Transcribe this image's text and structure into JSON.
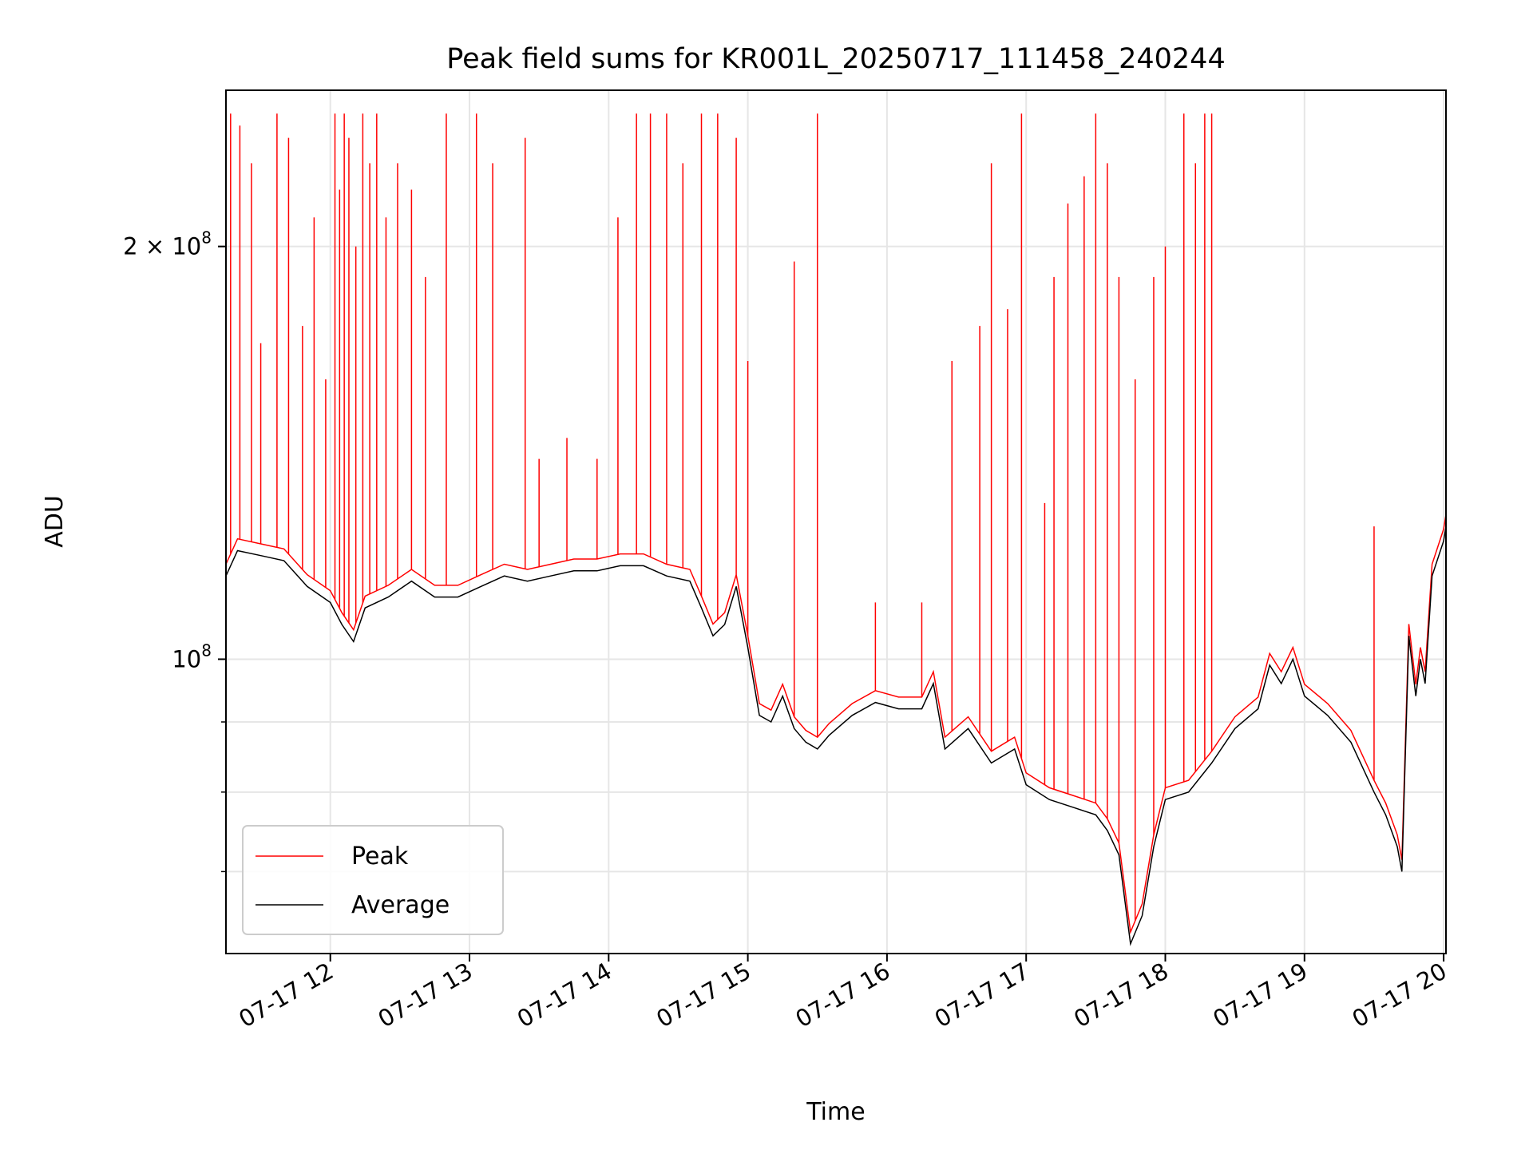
{
  "chart_data": {
    "type": "line",
    "title": "Peak field sums for KR001L_20250717_111458_240244",
    "xlabel": "Time",
    "ylabel": "ADU",
    "x_range": [
      "2025-07-17 11:15",
      "2025-07-17 20:01"
    ],
    "y_scale": "log",
    "ylim": [
      61000000,
      260000000
    ],
    "grid": true,
    "legend_position": "lower-left",
    "x_ticks": [
      {
        "value": "2025-07-17 12:00",
        "label": "07-17 12"
      },
      {
        "value": "2025-07-17 13:00",
        "label": "07-17 13"
      },
      {
        "value": "2025-07-17 14:00",
        "label": "07-17 14"
      },
      {
        "value": "2025-07-17 15:00",
        "label": "07-17 15"
      },
      {
        "value": "2025-07-17 16:00",
        "label": "07-17 16"
      },
      {
        "value": "2025-07-17 17:00",
        "label": "07-17 17"
      },
      {
        "value": "2025-07-17 18:00",
        "label": "07-17 18"
      },
      {
        "value": "2025-07-17 19:00",
        "label": "07-17 19"
      },
      {
        "value": "2025-07-17 20:00",
        "label": "07-17 20"
      }
    ],
    "y_ticks": [
      {
        "value": 100000000,
        "label_base": "10",
        "label_exp": "8",
        "label_coef": ""
      },
      {
        "value": 200000000,
        "label_base": "10",
        "label_exp": "8",
        "label_coef": "2 × "
      }
    ],
    "y_minor_ticks": [
      70000000,
      80000000,
      90000000
    ],
    "series": [
      {
        "name": "Average",
        "color": "#000000",
        "points": [
          [
            "2025-07-17 11:15",
            115000000
          ],
          [
            "2025-07-17 11:20",
            120000000
          ],
          [
            "2025-07-17 11:30",
            119000000
          ],
          [
            "2025-07-17 11:40",
            118000000
          ],
          [
            "2025-07-17 11:50",
            113000000
          ],
          [
            "2025-07-17 12:00",
            110000000
          ],
          [
            "2025-07-17 12:05",
            106000000
          ],
          [
            "2025-07-17 12:10",
            103000000
          ],
          [
            "2025-07-17 12:15",
            109000000
          ],
          [
            "2025-07-17 12:25",
            111000000
          ],
          [
            "2025-07-17 12:35",
            114000000
          ],
          [
            "2025-07-17 12:45",
            111000000
          ],
          [
            "2025-07-17 12:55",
            111000000
          ],
          [
            "2025-07-17 13:05",
            113000000
          ],
          [
            "2025-07-17 13:15",
            115000000
          ],
          [
            "2025-07-17 13:25",
            114000000
          ],
          [
            "2025-07-17 13:35",
            115000000
          ],
          [
            "2025-07-17 13:45",
            116000000
          ],
          [
            "2025-07-17 13:55",
            116000000
          ],
          [
            "2025-07-17 14:05",
            117000000
          ],
          [
            "2025-07-17 14:15",
            117000000
          ],
          [
            "2025-07-17 14:25",
            115000000
          ],
          [
            "2025-07-17 14:35",
            114000000
          ],
          [
            "2025-07-17 14:40",
            109000000
          ],
          [
            "2025-07-17 14:45",
            104000000
          ],
          [
            "2025-07-17 14:50",
            106000000
          ],
          [
            "2025-07-17 14:55",
            113000000
          ],
          [
            "2025-07-17 15:00",
            102000000
          ],
          [
            "2025-07-17 15:05",
            91000000
          ],
          [
            "2025-07-17 15:10",
            90000000
          ],
          [
            "2025-07-17 15:15",
            94000000
          ],
          [
            "2025-07-17 15:20",
            89000000
          ],
          [
            "2025-07-17 15:25",
            87000000
          ],
          [
            "2025-07-17 15:30",
            86000000
          ],
          [
            "2025-07-17 15:35",
            88000000
          ],
          [
            "2025-07-17 15:45",
            91000000
          ],
          [
            "2025-07-17 15:55",
            93000000
          ],
          [
            "2025-07-17 16:05",
            92000000
          ],
          [
            "2025-07-17 16:15",
            92000000
          ],
          [
            "2025-07-17 16:20",
            96000000
          ],
          [
            "2025-07-17 16:25",
            86000000
          ],
          [
            "2025-07-17 16:35",
            89000000
          ],
          [
            "2025-07-17 16:45",
            84000000
          ],
          [
            "2025-07-17 16:55",
            86000000
          ],
          [
            "2025-07-17 17:00",
            81000000
          ],
          [
            "2025-07-17 17:10",
            79000000
          ],
          [
            "2025-07-17 17:20",
            78000000
          ],
          [
            "2025-07-17 17:30",
            77000000
          ],
          [
            "2025-07-17 17:35",
            75000000
          ],
          [
            "2025-07-17 17:40",
            72000000
          ],
          [
            "2025-07-17 17:45",
            62000000
          ],
          [
            "2025-07-17 17:50",
            65000000
          ],
          [
            "2025-07-17 17:55",
            73000000
          ],
          [
            "2025-07-17 18:00",
            79000000
          ],
          [
            "2025-07-17 18:10",
            80000000
          ],
          [
            "2025-07-17 18:20",
            84000000
          ],
          [
            "2025-07-17 18:30",
            89000000
          ],
          [
            "2025-07-17 18:40",
            92000000
          ],
          [
            "2025-07-17 18:45",
            99000000
          ],
          [
            "2025-07-17 18:50",
            96000000
          ],
          [
            "2025-07-17 18:55",
            100000000
          ],
          [
            "2025-07-17 19:00",
            94000000
          ],
          [
            "2025-07-17 19:10",
            91000000
          ],
          [
            "2025-07-17 19:20",
            87000000
          ],
          [
            "2025-07-17 19:30",
            80000000
          ],
          [
            "2025-07-17 19:35",
            77000000
          ],
          [
            "2025-07-17 19:40",
            73000000
          ],
          [
            "2025-07-17 19:42",
            70000000
          ],
          [
            "2025-07-17 19:45",
            104000000
          ],
          [
            "2025-07-17 19:48",
            94000000
          ],
          [
            "2025-07-17 19:50",
            100000000
          ],
          [
            "2025-07-17 19:52",
            96000000
          ],
          [
            "2025-07-17 19:55",
            115000000
          ],
          [
            "2025-07-17 20:00",
            122000000
          ],
          [
            "2025-07-17 20:01",
            125000000
          ]
        ]
      },
      {
        "name": "Peak",
        "color": "#ff0000",
        "spikes": [
          [
            "2025-07-17 11:17",
            250000000
          ],
          [
            "2025-07-17 11:21",
            245000000
          ],
          [
            "2025-07-17 11:26",
            230000000
          ],
          [
            "2025-07-17 11:30",
            170000000
          ],
          [
            "2025-07-17 11:37",
            250000000
          ],
          [
            "2025-07-17 11:42",
            240000000
          ],
          [
            "2025-07-17 11:48",
            175000000
          ],
          [
            "2025-07-17 11:53",
            210000000
          ],
          [
            "2025-07-17 11:58",
            160000000
          ],
          [
            "2025-07-17 12:02",
            250000000
          ],
          [
            "2025-07-17 12:04",
            220000000
          ],
          [
            "2025-07-17 12:06",
            250000000
          ],
          [
            "2025-07-17 12:08",
            240000000
          ],
          [
            "2025-07-17 12:11",
            200000000
          ],
          [
            "2025-07-17 12:14",
            250000000
          ],
          [
            "2025-07-17 12:17",
            230000000
          ],
          [
            "2025-07-17 12:20",
            250000000
          ],
          [
            "2025-07-17 12:24",
            210000000
          ],
          [
            "2025-07-17 12:29",
            230000000
          ],
          [
            "2025-07-17 12:35",
            220000000
          ],
          [
            "2025-07-17 12:41",
            190000000
          ],
          [
            "2025-07-17 12:50",
            250000000
          ],
          [
            "2025-07-17 13:03",
            250000000
          ],
          [
            "2025-07-17 13:10",
            230000000
          ],
          [
            "2025-07-17 13:24",
            240000000
          ],
          [
            "2025-07-17 13:30",
            140000000
          ],
          [
            "2025-07-17 13:42",
            145000000
          ],
          [
            "2025-07-17 13:55",
            140000000
          ],
          [
            "2025-07-17 14:04",
            210000000
          ],
          [
            "2025-07-17 14:12",
            250000000
          ],
          [
            "2025-07-17 14:18",
            250000000
          ],
          [
            "2025-07-17 14:25",
            250000000
          ],
          [
            "2025-07-17 14:32",
            230000000
          ],
          [
            "2025-07-17 14:40",
            250000000
          ],
          [
            "2025-07-17 14:47",
            250000000
          ],
          [
            "2025-07-17 14:55",
            240000000
          ],
          [
            "2025-07-17 15:00",
            165000000
          ],
          [
            "2025-07-17 15:20",
            195000000
          ],
          [
            "2025-07-17 15:30",
            250000000
          ],
          [
            "2025-07-17 15:55",
            110000000
          ],
          [
            "2025-07-17 16:15",
            110000000
          ],
          [
            "2025-07-17 16:28",
            165000000
          ],
          [
            "2025-07-17 16:40",
            175000000
          ],
          [
            "2025-07-17 16:45",
            230000000
          ],
          [
            "2025-07-17 16:52",
            180000000
          ],
          [
            "2025-07-17 16:58",
            250000000
          ],
          [
            "2025-07-17 17:08",
            130000000
          ],
          [
            "2025-07-17 17:12",
            190000000
          ],
          [
            "2025-07-17 17:18",
            215000000
          ],
          [
            "2025-07-17 17:25",
            225000000
          ],
          [
            "2025-07-17 17:30",
            250000000
          ],
          [
            "2025-07-17 17:35",
            230000000
          ],
          [
            "2025-07-17 17:40",
            190000000
          ],
          [
            "2025-07-17 17:47",
            160000000
          ],
          [
            "2025-07-17 17:55",
            190000000
          ],
          [
            "2025-07-17 18:00",
            200000000
          ],
          [
            "2025-07-17 18:08",
            250000000
          ],
          [
            "2025-07-17 18:13",
            230000000
          ],
          [
            "2025-07-17 18:17",
            250000000
          ],
          [
            "2025-07-17 18:20",
            250000000
          ],
          [
            "2025-07-17 19:30",
            125000000
          ]
        ]
      }
    ]
  }
}
